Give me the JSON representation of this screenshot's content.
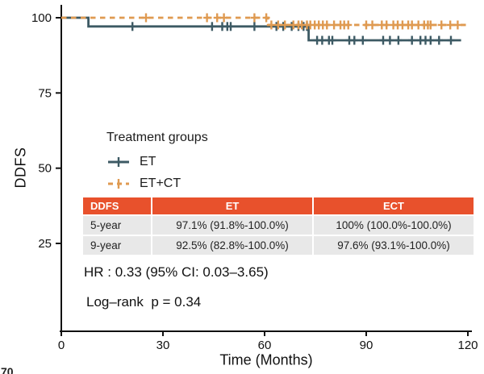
{
  "figure": {
    "legend": {
      "title": "Treatment groups"
    },
    "stats": {
      "hr": "HR : 0.33 (95% CI: 0.03–3.65)",
      "logrank": "Log–rank  p = 0.34"
    },
    "corner_fragment": "70"
  },
  "table": {
    "headers": [
      "DDFS",
      "ET",
      "ECT"
    ],
    "rows": [
      [
        "5-year",
        "97.1% (91.8%-100.0%)",
        "100% (100.0%-100.0%)"
      ],
      [
        "9-year",
        "92.5% (82.8%-100.0%)",
        "97.6% (93.1%-100.0%)"
      ]
    ]
  },
  "colors": {
    "et_line": "#3d5a64",
    "etct_line": "#df9a51",
    "table_header": "#e8512c",
    "table_row_bg": "#e8e8e8",
    "axis": "#111111"
  },
  "chart_data": {
    "type": "line",
    "subtype": "kaplan-meier-step",
    "title": "",
    "xlabel": "Time (Months)",
    "ylabel": "DDFS",
    "xlim": [
      0,
      120
    ],
    "ylim": [
      0,
      105
    ],
    "xticks": [
      0,
      30,
      60,
      90,
      120
    ],
    "yticks": [
      25,
      50,
      75,
      100
    ],
    "grid": false,
    "legend_position": "inside-left-middle",
    "series": [
      {
        "name": "ET",
        "color": "#3d5a64",
        "style": "solid",
        "steps": [
          [
            0,
            100
          ],
          [
            8,
            100
          ],
          [
            8,
            97.1
          ],
          [
            73,
            97.1
          ],
          [
            73,
            92.5
          ],
          [
            118,
            92.5
          ]
        ],
        "censors": [
          [
            21,
            97.1
          ],
          [
            44.5,
            97.1
          ],
          [
            47.5,
            97.1
          ],
          [
            49,
            97.1
          ],
          [
            50,
            97.1
          ],
          [
            57,
            97.1
          ],
          [
            63.5,
            97.1
          ],
          [
            65.5,
            97.1
          ],
          [
            68,
            97.1
          ],
          [
            70,
            97.1
          ],
          [
            71.5,
            97.1
          ],
          [
            72.5,
            97.1
          ],
          [
            75.5,
            92.5
          ],
          [
            77,
            92.5
          ],
          [
            79,
            92.5
          ],
          [
            80,
            92.5
          ],
          [
            85,
            92.5
          ],
          [
            86.5,
            92.5
          ],
          [
            89,
            92.5
          ],
          [
            95,
            92.5
          ],
          [
            97,
            92.5
          ],
          [
            99.5,
            92.5
          ],
          [
            103.5,
            92.5
          ],
          [
            106,
            92.5
          ],
          [
            107.5,
            92.5
          ],
          [
            109,
            92.5
          ],
          [
            111.5,
            92.5
          ],
          [
            115,
            92.5
          ]
        ]
      },
      {
        "name": "ET+CT",
        "color": "#df9a51",
        "style": "dashed",
        "steps": [
          [
            0,
            100
          ],
          [
            61,
            100
          ],
          [
            61,
            97.6
          ],
          [
            120,
            97.6
          ]
        ],
        "censors": [
          [
            25,
            100
          ],
          [
            43,
            100
          ],
          [
            46,
            100
          ],
          [
            48,
            100
          ],
          [
            57,
            100
          ],
          [
            60.5,
            100
          ],
          [
            62,
            97.6
          ],
          [
            64,
            97.6
          ],
          [
            66,
            97.6
          ],
          [
            68.5,
            97.6
          ],
          [
            70,
            97.6
          ],
          [
            71,
            97.6
          ],
          [
            72.5,
            97.6
          ],
          [
            73.5,
            97.6
          ],
          [
            74.8,
            97.6
          ],
          [
            76,
            97.6
          ],
          [
            77.2,
            97.6
          ],
          [
            78.4,
            97.6
          ],
          [
            80.5,
            97.6
          ],
          [
            82.4,
            97.6
          ],
          [
            83.5,
            97.6
          ],
          [
            84.7,
            97.6
          ],
          [
            90,
            97.6
          ],
          [
            91.8,
            97.6
          ],
          [
            94.6,
            97.6
          ],
          [
            96,
            97.6
          ],
          [
            98,
            97.6
          ],
          [
            99.3,
            97.6
          ],
          [
            100.7,
            97.6
          ],
          [
            102.4,
            97.6
          ],
          [
            103.5,
            97.6
          ],
          [
            105.4,
            97.6
          ],
          [
            107.1,
            97.6
          ],
          [
            108.2,
            97.6
          ],
          [
            109,
            97.6
          ],
          [
            112.2,
            97.6
          ],
          [
            114.8,
            97.6
          ],
          [
            117,
            97.6
          ]
        ]
      }
    ],
    "annotations": [
      "HR : 0.33 (95% CI: 0.03–3.65)",
      "Log–rank  p = 0.34"
    ]
  }
}
